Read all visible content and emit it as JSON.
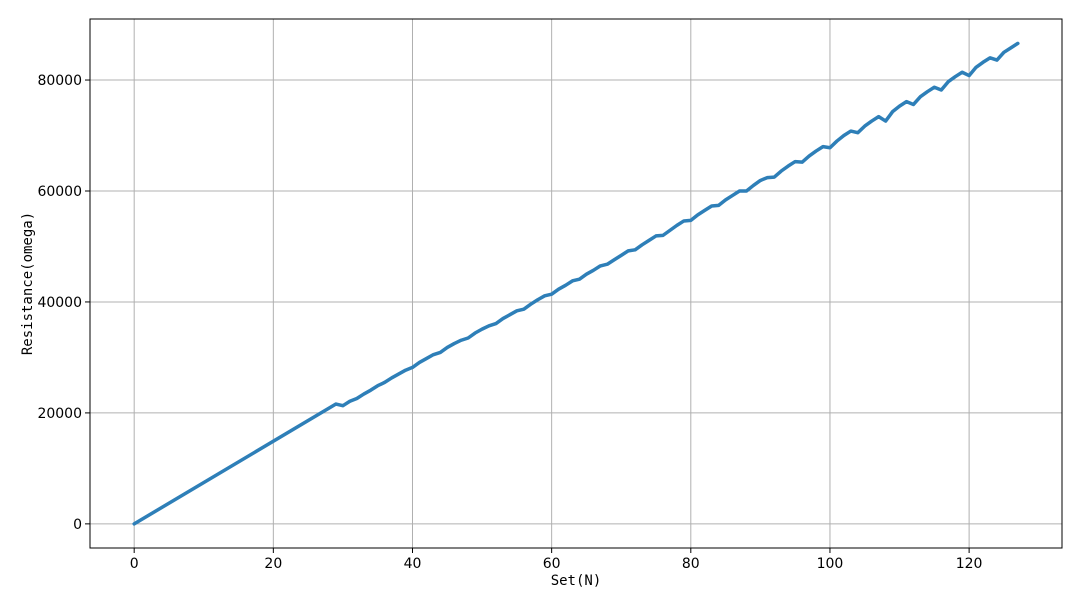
{
  "chart_data": {
    "type": "line",
    "title": "",
    "xlabel": "Set(N)",
    "ylabel": "Resistance(omega)",
    "xlim": [
      -6.35,
      133.35
    ],
    "ylim": [
      -4350,
      91000
    ],
    "xticks": [
      0,
      20,
      40,
      60,
      80,
      100,
      120
    ],
    "xtick_labels": [
      "0",
      "20",
      "40",
      "60",
      "80",
      "100",
      "120"
    ],
    "yticks": [
      0,
      20000,
      40000,
      60000,
      80000
    ],
    "ytick_labels": [
      "0",
      "20000",
      "40000",
      "60000",
      "80000"
    ],
    "grid": true,
    "legend": "none",
    "series": [
      {
        "color": "#2e7fb8",
        "x": [
          0,
          29,
          30,
          31,
          32,
          33,
          34,
          35,
          36,
          37,
          38,
          39,
          40,
          41,
          42,
          43,
          44,
          45,
          46,
          47,
          48,
          49,
          50,
          51,
          52,
          53,
          54,
          55,
          56,
          57,
          58,
          59,
          60,
          61,
          62,
          63,
          64,
          65,
          66,
          67,
          68,
          69,
          70,
          71,
          72,
          73,
          74,
          75,
          76,
          77,
          78,
          79,
          80,
          81,
          82,
          83,
          84,
          85,
          86,
          87,
          88,
          89,
          90,
          91,
          92,
          93,
          94,
          95,
          96,
          97,
          98,
          99,
          100,
          101,
          102,
          103,
          104,
          105,
          106,
          107,
          108,
          109,
          110,
          111,
          112,
          113,
          114,
          115,
          116,
          117,
          118,
          119,
          120,
          121,
          122,
          123,
          124,
          125,
          126,
          127
        ],
        "y": [
          0,
          21600,
          21300,
          22100,
          22600,
          23400,
          24100,
          24900,
          25500,
          26300,
          27000,
          27700,
          28200,
          29100,
          29800,
          30500,
          30900,
          31800,
          32500,
          33100,
          33500,
          34400,
          35100,
          35700,
          36100,
          37000,
          37700,
          38400,
          38700,
          39600,
          40400,
          41100,
          41400,
          42300,
          43000,
          43800,
          44100,
          45000,
          45700,
          46500,
          46800,
          47600,
          48400,
          49200,
          49400,
          50300,
          51100,
          51900,
          52000,
          52900,
          53800,
          54600,
          54700,
          55700,
          56500,
          57300,
          57400,
          58400,
          59200,
          60000,
          60000,
          61000,
          61900,
          62400,
          62500,
          63600,
          64500,
          65300,
          65200,
          66300,
          67200,
          68000,
          67800,
          69000,
          70000,
          70800,
          70500,
          71700,
          72600,
          73400,
          72600,
          74300,
          75300,
          76100,
          75600,
          77000,
          77900,
          78700,
          78200,
          79700,
          80600,
          81400,
          80800,
          82300,
          83200,
          84000,
          83600,
          85000,
          85800,
          86600
        ]
      }
    ]
  }
}
